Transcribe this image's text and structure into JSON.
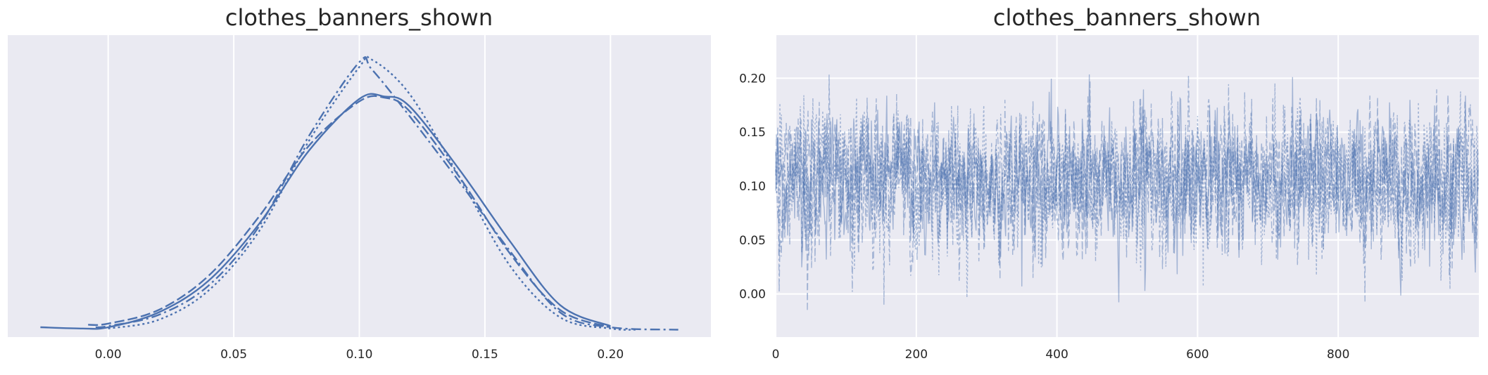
{
  "chart_data": [
    {
      "type": "line",
      "title": "clothes_banners_shown",
      "xlabel": "",
      "ylabel": "",
      "xlim": [
        -0.04,
        0.24
      ],
      "ylim": [
        -0.3,
        12.0
      ],
      "xticks": [
        0.0,
        0.05,
        0.1,
        0.15,
        0.2
      ],
      "xtick_labels": [
        "0.00",
        "0.05",
        "0.10",
        "0.15",
        "0.20"
      ],
      "yticks": [],
      "grid": true,
      "line_color": "#4c72b0",
      "series": [
        {
          "style": "solid",
          "x": [
            -0.027,
            -0.01,
            0.0,
            0.02,
            0.04,
            0.06,
            0.08,
            0.1,
            0.11,
            0.12,
            0.14,
            0.16,
            0.18,
            0.2
          ],
          "y": [
            0.1,
            0.05,
            0.1,
            0.7,
            2.0,
            4.3,
            7.3,
            9.4,
            9.5,
            9.1,
            6.5,
            3.6,
            1.0,
            0.15
          ]
        },
        {
          "style": "dashed",
          "x": [
            -0.008,
            0.0,
            0.02,
            0.04,
            0.06,
            0.08,
            0.1,
            0.11,
            0.12,
            0.14,
            0.16,
            0.18,
            0.2
          ],
          "y": [
            0.2,
            0.25,
            0.8,
            2.2,
            4.6,
            7.5,
            9.3,
            9.45,
            8.9,
            6.2,
            3.1,
            0.8,
            0.1
          ]
        },
        {
          "style": "dashdot",
          "x": [
            -0.005,
            0.0,
            0.02,
            0.04,
            0.06,
            0.08,
            0.1,
            0.105,
            0.12,
            0.14,
            0.16,
            0.18,
            0.2,
            0.227
          ],
          "y": [
            0.1,
            0.15,
            0.6,
            1.8,
            4.2,
            7.9,
            10.9,
            10.6,
            8.7,
            6.0,
            3.2,
            0.7,
            0.1,
            0.0
          ]
        },
        {
          "style": "dotted",
          "x": [
            0.0,
            0.02,
            0.04,
            0.06,
            0.08,
            0.1,
            0.105,
            0.12,
            0.14,
            0.16,
            0.18,
            0.2,
            0.21
          ],
          "y": [
            0.05,
            0.4,
            1.6,
            4.0,
            7.7,
            10.7,
            11.0,
            9.6,
            6.2,
            2.6,
            0.5,
            0.05,
            0.0
          ]
        }
      ]
    },
    {
      "type": "line",
      "title": "clothes_banners_shown",
      "xlabel": "",
      "ylabel": "",
      "xlim": [
        0,
        1000
      ],
      "ylim": [
        -0.04,
        0.24
      ],
      "xticks": [
        0,
        200,
        400,
        600,
        800
      ],
      "xtick_labels": [
        "0",
        "200",
        "400",
        "600",
        "800"
      ],
      "yticks": [
        0.0,
        0.05,
        0.1,
        0.15,
        0.2
      ],
      "ytick_labels": [
        "0.00",
        "0.05",
        "0.10",
        "0.15",
        "0.20"
      ],
      "grid": true,
      "line_color": "#4c72b0",
      "draws": 1000,
      "chains": 4,
      "series_mean": 0.105,
      "series_sd": 0.03,
      "min_value": -0.027,
      "max_value": 0.227
    }
  ]
}
